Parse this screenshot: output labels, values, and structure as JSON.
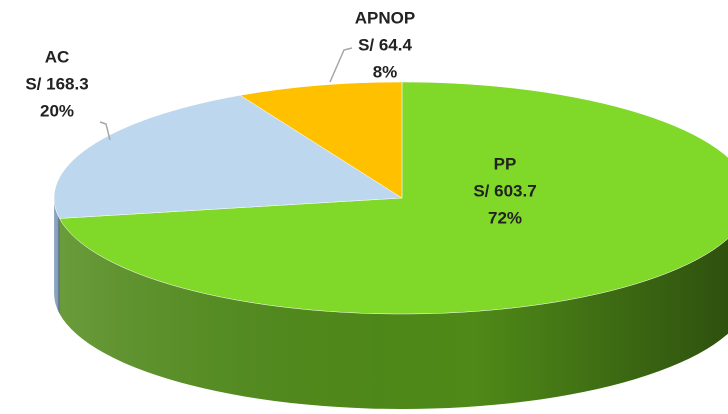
{
  "chart_data": {
    "type": "pie",
    "categories": [
      "PP",
      "AC",
      "APNOP"
    ],
    "values": [
      603.7,
      168.3,
      64.4
    ],
    "value_labels": [
      "S/ 603.7",
      "S/ 168.3",
      "S/ 64.4"
    ],
    "percentages": [
      72,
      20,
      8
    ],
    "percentage_labels": [
      "72%",
      "20%",
      "8%"
    ],
    "colors": [
      "#80d829",
      "#bdd7ee",
      "#ffc000"
    ],
    "side_colors": [
      "#4f8a18",
      "#8aa6c0",
      "#c08f00"
    ]
  }
}
